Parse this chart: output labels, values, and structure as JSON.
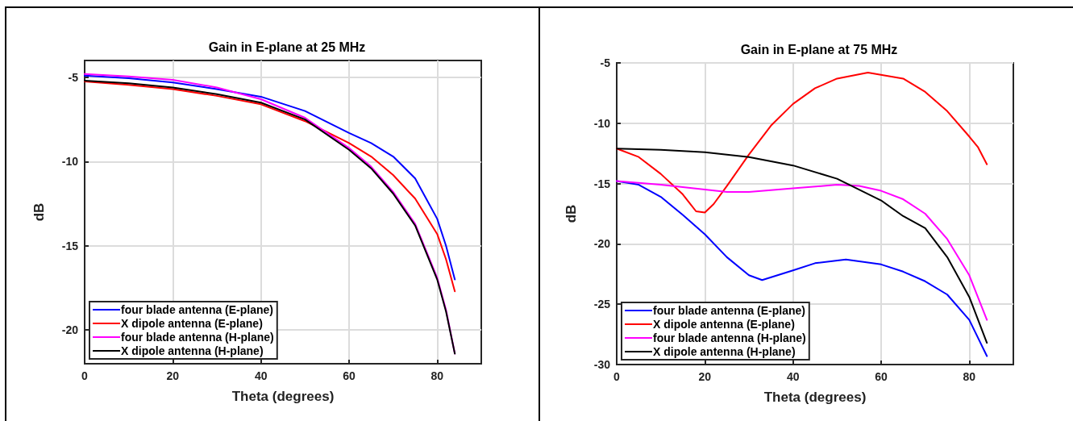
{
  "chart_data": [
    {
      "type": "line",
      "title": "Gain in E-plane at 25 MHz",
      "xlabel": "Theta (degrees)",
      "ylabel": "dB",
      "xlim": [
        0,
        90
      ],
      "xticks": [
        0,
        20,
        40,
        60,
        80
      ],
      "ylim": [
        -22,
        -4
      ],
      "yticks": [
        -20,
        -15,
        -10,
        -5
      ],
      "grid": true,
      "legend": "bottom left",
      "line_style": "solid",
      "series": [
        {
          "name": "four blade antenna (E-plane)",
          "color": "#0000ff",
          "x": [
            0,
            10,
            20,
            30,
            40,
            50,
            60,
            65,
            70,
            75,
            80,
            82,
            84
          ],
          "values": [
            -4.9,
            -5.05,
            -5.3,
            -5.7,
            -6.15,
            -7.0,
            -8.3,
            -8.9,
            -9.7,
            -11.0,
            -13.4,
            -15.0,
            -17.0
          ]
        },
        {
          "name": "X dipole antenna (E-plane)",
          "color": "#ff0000",
          "x": [
            0,
            10,
            20,
            30,
            40,
            50,
            60,
            65,
            70,
            75,
            80,
            82,
            84
          ],
          "values": [
            -5.25,
            -5.45,
            -5.7,
            -6.1,
            -6.6,
            -7.6,
            -8.9,
            -9.7,
            -10.8,
            -12.2,
            -14.3,
            -15.8,
            -17.7
          ]
        },
        {
          "name": "four blade antenna (H-plane)",
          "color": "#ff00ff",
          "x": [
            0,
            10,
            20,
            30,
            40,
            50,
            60,
            65,
            70,
            75,
            80,
            82,
            84
          ],
          "values": [
            -4.8,
            -4.95,
            -5.15,
            -5.6,
            -6.3,
            -7.4,
            -9.2,
            -10.3,
            -11.8,
            -13.7,
            -16.9,
            -18.8,
            -21.4
          ]
        },
        {
          "name": "X dipole antenna (H-plane)",
          "color": "#000000",
          "x": [
            0,
            10,
            20,
            30,
            40,
            50,
            60,
            65,
            70,
            75,
            80,
            82,
            84
          ],
          "values": [
            -5.2,
            -5.35,
            -5.6,
            -6.0,
            -6.5,
            -7.5,
            -9.3,
            -10.4,
            -11.9,
            -13.8,
            -17.0,
            -18.9,
            -21.4
          ]
        }
      ]
    },
    {
      "type": "line",
      "title": "Gain in E-plane at 75 MHz",
      "xlabel": "Theta (degrees)",
      "ylabel": "dB",
      "xlim": [
        0,
        90
      ],
      "xticks": [
        0,
        20,
        40,
        60,
        80
      ],
      "ylim": [
        -30,
        -5
      ],
      "yticks": [
        -30,
        -25,
        -20,
        -15,
        -10,
        -5
      ],
      "grid": true,
      "legend": "bottom left",
      "line_style": "solid",
      "series": [
        {
          "name": "four blade antenna (E-plane)",
          "color": "#0000ff",
          "x": [
            0,
            5,
            10,
            15,
            20,
            25,
            30,
            33,
            40,
            45,
            52,
            60,
            65,
            70,
            75,
            80,
            84
          ],
          "values": [
            -14.8,
            -15.1,
            -16.1,
            -17.6,
            -19.2,
            -21.1,
            -22.6,
            -23.0,
            -22.2,
            -21.6,
            -21.3,
            -21.7,
            -22.3,
            -23.1,
            -24.2,
            -26.3,
            -29.3
          ]
        },
        {
          "name": "X dipole antenna (E-plane)",
          "color": "#ff0000",
          "x": [
            0,
            5,
            10,
            15,
            18,
            20,
            22,
            25,
            30,
            35,
            40,
            45,
            50,
            57,
            65,
            70,
            75,
            80,
            82,
            84
          ],
          "values": [
            -12.1,
            -12.8,
            -14.2,
            -15.9,
            -17.3,
            -17.4,
            -16.7,
            -15.2,
            -12.6,
            -10.2,
            -8.4,
            -7.1,
            -6.3,
            -5.8,
            -6.3,
            -7.4,
            -9.0,
            -11.1,
            -12.0,
            -13.4
          ]
        },
        {
          "name": "four blade antenna (H-plane)",
          "color": "#ff00ff",
          "x": [
            0,
            10,
            20,
            25,
            30,
            40,
            50,
            55,
            60,
            65,
            70,
            75,
            80,
            84
          ],
          "values": [
            -14.8,
            -15.1,
            -15.5,
            -15.7,
            -15.7,
            -15.4,
            -15.1,
            -15.2,
            -15.6,
            -16.3,
            -17.5,
            -19.6,
            -22.6,
            -26.3
          ]
        },
        {
          "name": "X dipole antenna (H-plane)",
          "color": "#000000",
          "x": [
            0,
            10,
            20,
            30,
            40,
            50,
            55,
            60,
            65,
            70,
            75,
            80,
            84
          ],
          "values": [
            -12.1,
            -12.2,
            -12.4,
            -12.8,
            -13.5,
            -14.6,
            -15.5,
            -16.4,
            -17.7,
            -18.7,
            -21.1,
            -24.4,
            -28.2
          ]
        }
      ]
    }
  ]
}
